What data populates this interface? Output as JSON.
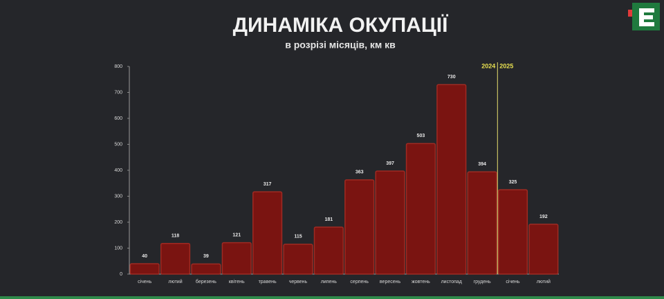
{
  "chart_data": {
    "type": "bar",
    "title": "ДИНАМІКА ОКУПАЦІЇ",
    "subtitle": "в розрізі місяців, км кв",
    "categories": [
      "січень",
      "лютий",
      "березень",
      "квітень",
      "травень",
      "червень",
      "липень",
      "серпень",
      "вересень",
      "жовтень",
      "листопад",
      "грудень",
      "січень",
      "лютий"
    ],
    "values": [
      40,
      118,
      39,
      121,
      317,
      115,
      181,
      363,
      397,
      503,
      730,
      394,
      325,
      192
    ],
    "color": "#7a1411",
    "ylim": [
      0,
      800
    ],
    "yticks": [
      0,
      100,
      200,
      300,
      400,
      500,
      600,
      700,
      800
    ],
    "divider_labels": [
      "2024",
      "2025"
    ]
  }
}
